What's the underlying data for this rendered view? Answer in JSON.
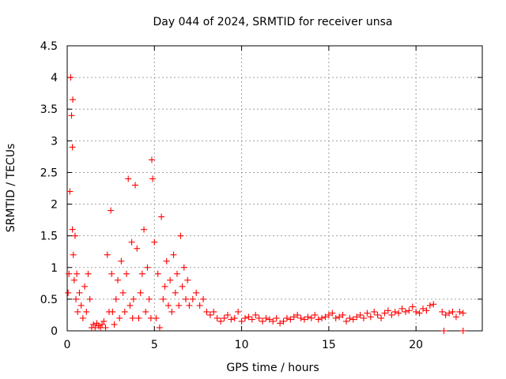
{
  "chart_data": {
    "type": "scatter",
    "title": "Day 044 of 2024, SRMTID for receiver unsa",
    "xlabel": "GPS time / hours",
    "ylabel": "SRMTID / TECUs",
    "xlim": [
      0,
      23.8
    ],
    "ylim": [
      0,
      4.5
    ],
    "x_ticks": [
      0,
      5,
      10,
      15,
      20
    ],
    "x_tick_labels": [
      "0",
      "5",
      "10",
      "15",
      "20"
    ],
    "y_ticks": [
      0,
      0.5,
      1,
      1.5,
      2,
      2.5,
      3,
      3.5,
      4,
      4.5
    ],
    "y_tick_labels": [
      "0",
      "0.5",
      "1",
      "1.5",
      "2",
      "2.5",
      "3",
      "3.5",
      "4",
      "4.5"
    ],
    "grid": true,
    "marker": "+",
    "color": "#ff0000",
    "series": [
      {
        "name": "unsa",
        "x": [
          0.05,
          0.1,
          0.15,
          0.2,
          0.25,
          0.3,
          0.3,
          0.32,
          0.35,
          0.4,
          0.45,
          0.5,
          0.55,
          0.6,
          0.7,
          0.8,
          0.9,
          1.0,
          1.1,
          1.2,
          1.3,
          1.4,
          1.5,
          1.6,
          1.7,
          1.8,
          1.9,
          2.0,
          2.1,
          2.2,
          2.3,
          2.4,
          2.5,
          2.55,
          2.6,
          2.7,
          2.8,
          2.9,
          3.0,
          3.1,
          3.2,
          3.3,
          3.4,
          3.5,
          3.6,
          3.7,
          3.75,
          3.8,
          3.9,
          4.0,
          4.1,
          4.2,
          4.3,
          4.4,
          4.5,
          4.6,
          4.7,
          4.8,
          4.85,
          4.9,
          5.0,
          5.1,
          5.2,
          5.3,
          5.4,
          5.5,
          5.6,
          5.7,
          5.8,
          5.9,
          6.0,
          6.1,
          6.2,
          6.3,
          6.4,
          6.5,
          6.6,
          6.7,
          6.8,
          6.9,
          7.0,
          7.2,
          7.4,
          7.6,
          7.8,
          8.0,
          8.2,
          8.4,
          8.6,
          8.8,
          9.0,
          9.2,
          9.4,
          9.6,
          9.8,
          10.0,
          10.2,
          10.4,
          10.6,
          10.8,
          11.0,
          11.2,
          11.4,
          11.6,
          11.8,
          12.0,
          12.2,
          12.4,
          12.6,
          12.8,
          13.0,
          13.2,
          13.4,
          13.6,
          13.8,
          14.0,
          14.2,
          14.4,
          14.6,
          14.8,
          15.0,
          15.2,
          15.4,
          15.6,
          15.8,
          16.0,
          16.2,
          16.4,
          16.6,
          16.8,
          17.0,
          17.2,
          17.4,
          17.6,
          17.8,
          18.0,
          18.2,
          18.4,
          18.6,
          18.8,
          19.0,
          19.2,
          19.4,
          19.6,
          19.8,
          20.0,
          20.2,
          20.4,
          20.6,
          20.8,
          21.0,
          21.5,
          21.7,
          21.9,
          22.1,
          22.3,
          22.5,
          22.7,
          21.6,
          22.7
        ],
        "y": [
          0.6,
          0.9,
          2.2,
          4.0,
          3.4,
          2.9,
          1.6,
          3.65,
          1.2,
          0.8,
          1.5,
          0.5,
          0.9,
          0.3,
          0.6,
          0.4,
          0.2,
          0.7,
          0.3,
          0.9,
          0.5,
          0.05,
          0.1,
          0.05,
          0.12,
          0.08,
          0.05,
          0.1,
          0.15,
          0.05,
          1.2,
          0.3,
          1.9,
          0.9,
          0.3,
          0.1,
          0.5,
          0.8,
          0.2,
          1.1,
          0.6,
          0.3,
          0.9,
          2.4,
          0.4,
          1.4,
          0.2,
          0.5,
          2.3,
          1.3,
          0.2,
          0.6,
          0.9,
          1.6,
          0.3,
          1.0,
          0.5,
          0.2,
          2.7,
          2.4,
          1.4,
          0.2,
          0.9,
          0.05,
          1.8,
          0.5,
          0.7,
          1.1,
          0.4,
          0.8,
          0.3,
          1.2,
          0.6,
          0.9,
          0.4,
          1.5,
          0.7,
          1.0,
          0.5,
          0.8,
          0.4,
          0.5,
          0.6,
          0.4,
          0.5,
          0.3,
          0.25,
          0.3,
          0.2,
          0.15,
          0.2,
          0.25,
          0.18,
          0.2,
          0.3,
          0.15,
          0.2,
          0.22,
          0.18,
          0.25,
          0.2,
          0.15,
          0.2,
          0.18,
          0.15,
          0.2,
          0.12,
          0.15,
          0.2,
          0.18,
          0.22,
          0.25,
          0.2,
          0.18,
          0.22,
          0.2,
          0.25,
          0.18,
          0.2,
          0.22,
          0.25,
          0.28,
          0.2,
          0.22,
          0.25,
          0.15,
          0.2,
          0.18,
          0.22,
          0.25,
          0.2,
          0.28,
          0.22,
          0.3,
          0.25,
          0.2,
          0.28,
          0.32,
          0.25,
          0.3,
          0.28,
          0.35,
          0.3,
          0.32,
          0.38,
          0.3,
          0.28,
          0.35,
          0.32,
          0.4,
          0.42,
          0.3,
          0.25,
          0.28,
          0.3,
          0.22,
          0.3,
          0.28,
          0.0,
          0.0
        ]
      }
    ]
  }
}
